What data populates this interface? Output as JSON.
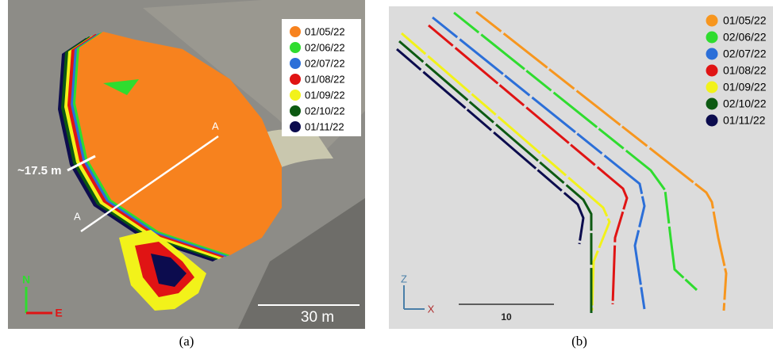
{
  "panel_a": {
    "legend": [
      {
        "label": "01/05/22",
        "color": "#f7821e"
      },
      {
        "label": "02/06/22",
        "color": "#2fdc2f"
      },
      {
        "label": "02/07/22",
        "color": "#2c6fd8"
      },
      {
        "label": "01/08/22",
        "color": "#e01414"
      },
      {
        "label": "01/09/22",
        "color": "#f2f21a"
      },
      {
        "label": "02/10/22",
        "color": "#0d5a12"
      },
      {
        "label": "01/11/22",
        "color": "#0c0c4e"
      }
    ],
    "distance_label": "~17.5 m",
    "section_labels": [
      "A",
      "A"
    ],
    "scale_label": "30 m",
    "north": "N",
    "east": "E",
    "caption": "(a)"
  },
  "panel_b": {
    "legend": [
      {
        "label": "01/05/22",
        "color": "#f7961e"
      },
      {
        "label": "02/06/22",
        "color": "#2fdc2f"
      },
      {
        "label": "02/07/22",
        "color": "#2c6fd8"
      },
      {
        "label": "01/08/22",
        "color": "#e01414"
      },
      {
        "label": "01/09/22",
        "color": "#f2f21a"
      },
      {
        "label": "02/10/22",
        "color": "#0d5a12"
      },
      {
        "label": "01/11/22",
        "color": "#0c0c4e"
      }
    ],
    "axis_labels": [
      "Z",
      "X"
    ],
    "scale_label": "10",
    "caption": "(b)"
  }
}
